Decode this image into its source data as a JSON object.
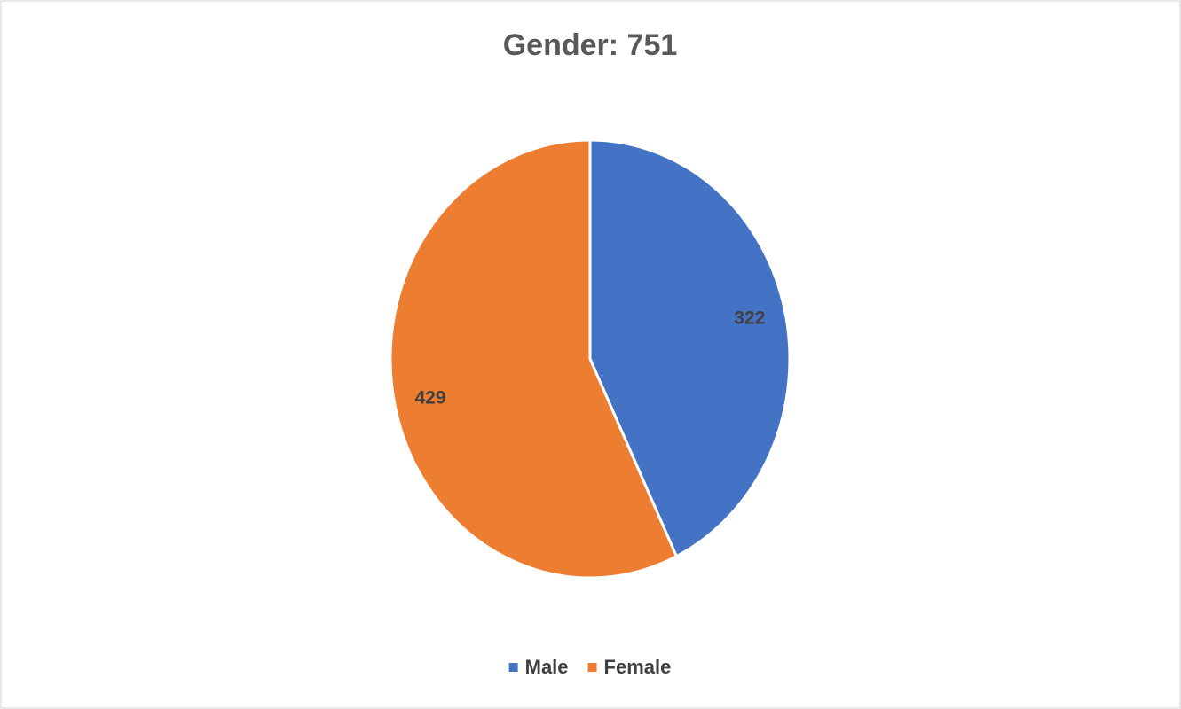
{
  "chart_data": {
    "type": "pie",
    "title": "Gender: 751",
    "categories": [
      "Male",
      "Female"
    ],
    "values": [
      322,
      429
    ],
    "colors": [
      "#4472c4",
      "#ed7d31"
    ],
    "legend": "bottom"
  }
}
